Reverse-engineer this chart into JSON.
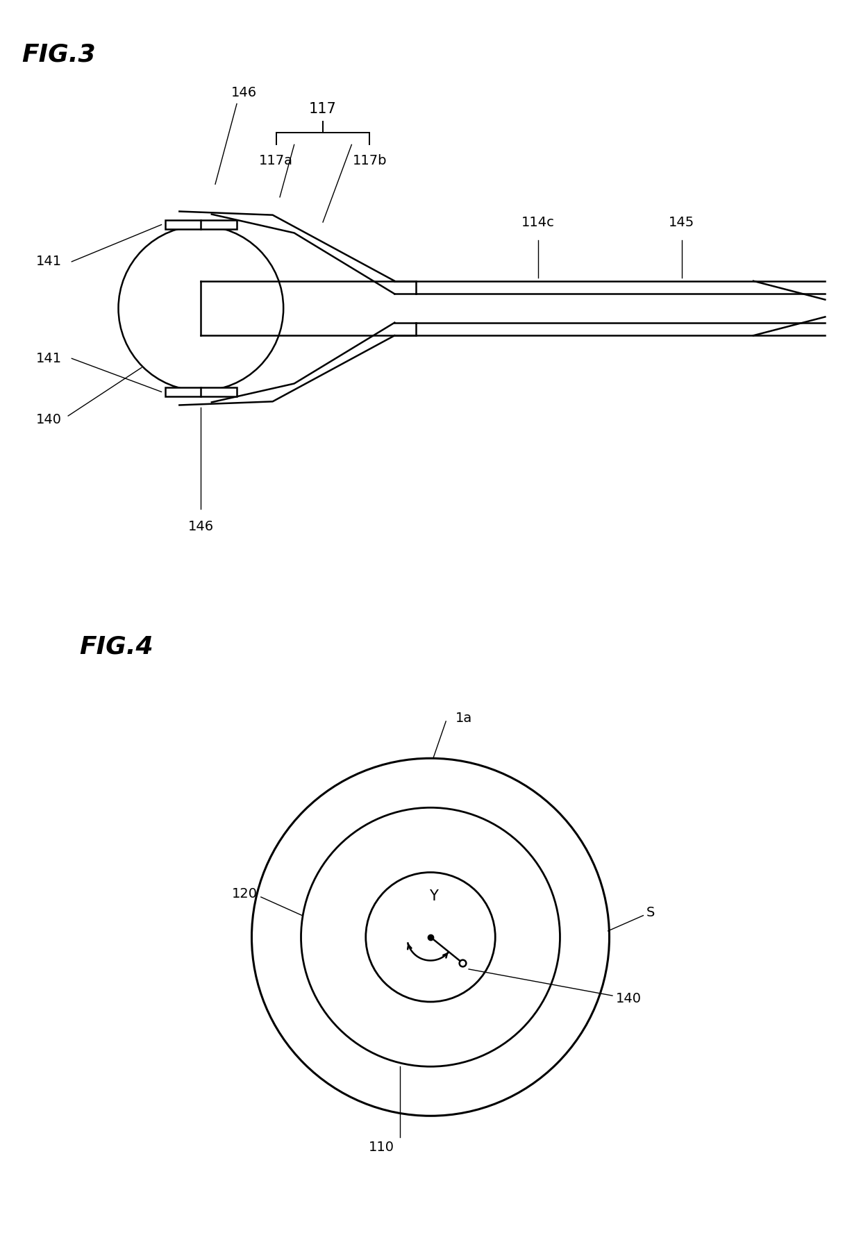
{
  "bg_color": "#ffffff",
  "line_color": "#000000",
  "fig3_title": "FIG.3",
  "fig4_title": "FIG.4",
  "labels": {
    "117": "117",
    "117a": "117a",
    "117b": "117b",
    "146_top": "146",
    "146_bot": "146",
    "141_top": "141",
    "141_bot": "141",
    "140": "140",
    "114c": "114c",
    "145": "145",
    "1a": "1a",
    "120": "120",
    "S": "S",
    "Y": "Y",
    "140b": "140",
    "110": "110"
  }
}
